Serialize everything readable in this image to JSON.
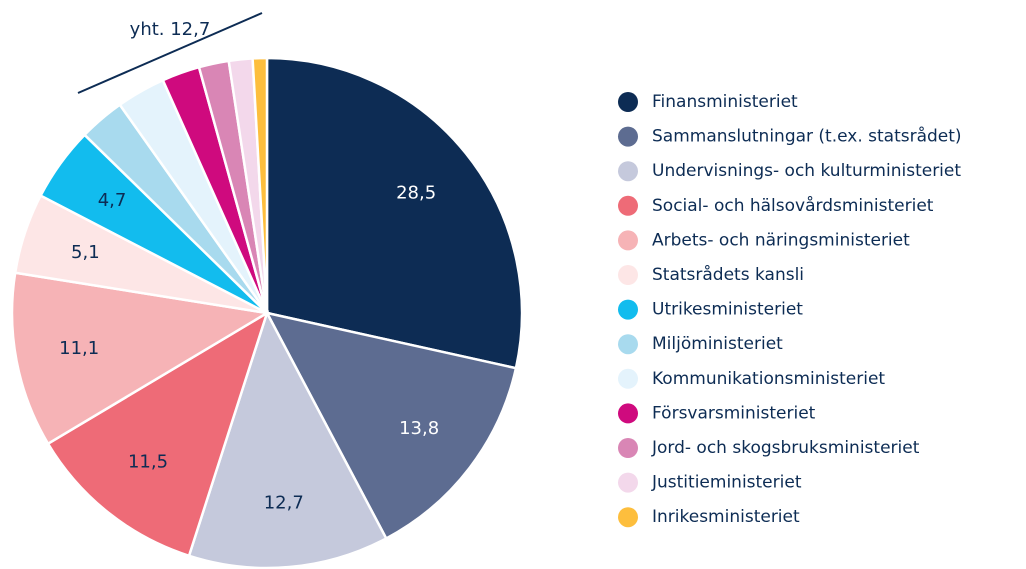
{
  "chart_data": {
    "type": "pie",
    "annotation": "yht. 12,7",
    "categories": [
      "Finansministeriet",
      "Sammanslutningar (t.ex. statsrådet)",
      "Undervisnings- och kulturministeriet",
      "Social- och hälsovårdsministeriet",
      "Arbets- och näringsministeriet",
      "Statsrådets kansli",
      "Utrikesministeriet",
      "Miljöministeriet",
      "Kommunikationsministeriet",
      "Försvarsministeriet",
      "Jord- och skogsbruksministeriet",
      "Justitieministeriet",
      "Inrikesministeriet"
    ],
    "values": [
      28.5,
      13.8,
      12.7,
      11.5,
      11.1,
      5.1,
      4.7,
      2.9,
      3.1,
      2.4,
      1.9,
      1.5,
      0.9
    ],
    "value_labels": [
      "28,5",
      "13,8",
      "12,7",
      "11,5",
      "11,1",
      "5,1",
      "4,7",
      null,
      null,
      null,
      null,
      null,
      null
    ],
    "colors": [
      "#0d2c54",
      "#5d6c91",
      "#c5c9dc",
      "#ee6b77",
      "#f6b3b6",
      "#fde6e6",
      "#12bcee",
      "#a8daee",
      "#e4f3fc",
      "#cf0a7e",
      "#d986b5",
      "#f3d8eb",
      "#fdbe3d"
    ],
    "legend": "right"
  }
}
